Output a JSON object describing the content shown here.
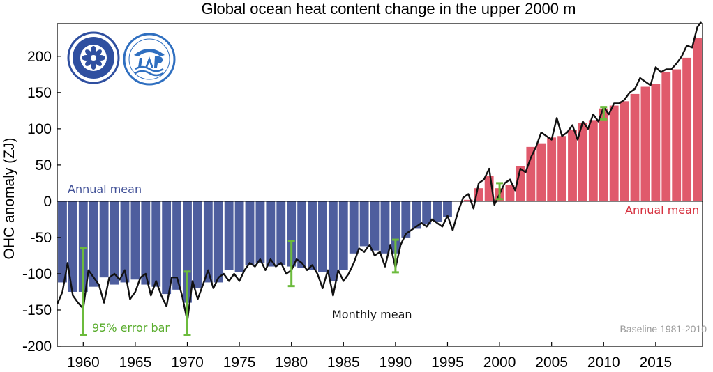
{
  "chart_data": {
    "type": "bar",
    "title": "Global ocean heat content change in the upper 2000 m",
    "ylabel": "OHC anomaly (ZJ)",
    "xlabel": "",
    "xlim": [
      1957.5,
      2019.5
    ],
    "ylim": [
      -200,
      245
    ],
    "x_ticks": [
      1960,
      1965,
      1970,
      1975,
      1980,
      1985,
      1990,
      1995,
      2000,
      2005,
      2010,
      2015
    ],
    "y_ticks": [
      -200,
      -150,
      -100,
      -50,
      0,
      50,
      100,
      150,
      200
    ],
    "grid": false,
    "series": [
      {
        "name": "Annual mean",
        "kind": "bar",
        "years": [
          1958,
          1959,
          1960,
          1961,
          1962,
          1963,
          1964,
          1965,
          1966,
          1967,
          1968,
          1969,
          1970,
          1971,
          1972,
          1973,
          1974,
          1975,
          1976,
          1977,
          1978,
          1979,
          1980,
          1981,
          1982,
          1983,
          1984,
          1985,
          1986,
          1987,
          1988,
          1989,
          1990,
          1991,
          1992,
          1993,
          1994,
          1995,
          1996,
          1997,
          1998,
          1999,
          2000,
          2001,
          2002,
          2003,
          2004,
          2005,
          2006,
          2007,
          2008,
          2009,
          2010,
          2011,
          2012,
          2013,
          2014,
          2015,
          2016,
          2017,
          2018,
          2019
        ],
        "values": [
          -112,
          -125,
          -125,
          -118,
          -105,
          -115,
          -112,
          -108,
          -115,
          -118,
          -128,
          -122,
          -140,
          -120,
          -112,
          -112,
          -95,
          -98,
          -88,
          -85,
          -90,
          -88,
          -90,
          -92,
          -95,
          -98,
          -110,
          -95,
          -72,
          -62,
          -68,
          -72,
          -72,
          -50,
          -38,
          -32,
          -28,
          -22,
          0,
          2,
          18,
          35,
          18,
          22,
          48,
          75,
          80,
          88,
          90,
          98,
          108,
          112,
          128,
          132,
          138,
          148,
          158,
          162,
          178,
          182,
          198,
          225
        ],
        "negative_color": "#4e5e9e",
        "positive_color": "#e05a6c"
      },
      {
        "name": "Monthly mean",
        "kind": "line",
        "color": "#111111",
        "x": [
          1957.5,
          1958.0,
          1958.5,
          1959.0,
          1959.5,
          1960.0,
          1960.5,
          1961.0,
          1961.5,
          1962.0,
          1962.5,
          1963.0,
          1963.5,
          1964.0,
          1964.5,
          1965.0,
          1965.5,
          1966.0,
          1966.5,
          1967.0,
          1967.5,
          1968.0,
          1968.5,
          1969.0,
          1969.5,
          1970.0,
          1970.5,
          1971.0,
          1971.5,
          1972.0,
          1972.5,
          1973.0,
          1973.5,
          1974.0,
          1974.5,
          1975.0,
          1975.5,
          1976.0,
          1976.5,
          1977.0,
          1977.5,
          1978.0,
          1978.5,
          1979.0,
          1979.5,
          1980.0,
          1980.5,
          1981.0,
          1981.5,
          1982.0,
          1982.5,
          1983.0,
          1983.5,
          1984.0,
          1984.5,
          1985.0,
          1985.5,
          1986.0,
          1986.5,
          1987.0,
          1987.5,
          1988.0,
          1988.5,
          1989.0,
          1989.5,
          1990.0,
          1990.5,
          1991.0,
          1991.5,
          1992.0,
          1992.5,
          1993.0,
          1993.5,
          1994.0,
          1994.5,
          1995.0,
          1995.5,
          1996.0,
          1996.5,
          1997.0,
          1997.5,
          1998.0,
          1998.5,
          1999.0,
          1999.5,
          2000.0,
          2000.5,
          2001.0,
          2001.5,
          2002.0,
          2002.5,
          2003.0,
          2003.5,
          2004.0,
          2004.5,
          2005.0,
          2005.5,
          2006.0,
          2006.5,
          2007.0,
          2007.5,
          2008.0,
          2008.5,
          2009.0,
          2009.5,
          2010.0,
          2010.5,
          2011.0,
          2011.5,
          2012.0,
          2012.5,
          2013.0,
          2013.5,
          2014.0,
          2014.5,
          2015.0,
          2015.5,
          2016.0,
          2016.5,
          2017.0,
          2017.5,
          2018.0,
          2018.5,
          2019.0,
          2019.4
        ],
        "y": [
          -142,
          -125,
          -85,
          -130,
          -140,
          -148,
          -95,
          -105,
          -115,
          -140,
          -105,
          -100,
          -108,
          -95,
          -135,
          -125,
          -105,
          -100,
          -130,
          -110,
          -130,
          -145,
          -105,
          -105,
          -130,
          -165,
          -110,
          -135,
          -115,
          -95,
          -120,
          -105,
          -100,
          -110,
          -100,
          -110,
          -95,
          -85,
          -90,
          -80,
          -95,
          -80,
          -90,
          -85,
          -100,
          -95,
          -80,
          -85,
          -95,
          -88,
          -100,
          -120,
          -95,
          -130,
          -95,
          -110,
          -100,
          -85,
          -65,
          -70,
          -60,
          -75,
          -70,
          -90,
          -60,
          -92,
          -60,
          -45,
          -40,
          -35,
          -30,
          -35,
          -25,
          -30,
          -35,
          -20,
          -40,
          -15,
          5,
          10,
          -10,
          25,
          30,
          45,
          -5,
          10,
          25,
          30,
          15,
          45,
          40,
          60,
          75,
          95,
          90,
          85,
          115,
          90,
          95,
          105,
          85,
          110,
          100,
          120,
          110,
          130,
          120,
          135,
          135,
          140,
          150,
          155,
          170,
          165,
          160,
          185,
          178,
          182,
          182,
          190,
          200,
          215,
          212,
          240,
          248
        ]
      },
      {
        "name": "95% error bar",
        "kind": "errorbar",
        "color": "#6cbb3c",
        "items": [
          {
            "x": 1960,
            "low": -185,
            "high": -65
          },
          {
            "x": 1970,
            "low": -185,
            "high": -97
          },
          {
            "x": 1980,
            "low": -117,
            "high": -55
          },
          {
            "x": 1990,
            "low": -98,
            "high": -53
          },
          {
            "x": 2000,
            "low": 3,
            "high": 25
          },
          {
            "x": 2010,
            "low": 113,
            "high": 130
          }
        ]
      }
    ],
    "annotations": {
      "annual_mean_left": "Annual mean",
      "annual_mean_right": "Annual mean",
      "monthly_mean": "Monthly mean",
      "error_bar": "95% error bar",
      "baseline": "Baseline 1981-2010"
    },
    "colors": {
      "annual_negative_label": "#3f4f96",
      "annual_positive_label": "#d6303e",
      "monthly_label": "#111111",
      "error_label": "#6cbb3c"
    },
    "logos": [
      {
        "name": "cas-logo",
        "color": "#2f4fa0"
      },
      {
        "name": "iap-logo",
        "color": "#2f6fc0"
      }
    ]
  }
}
